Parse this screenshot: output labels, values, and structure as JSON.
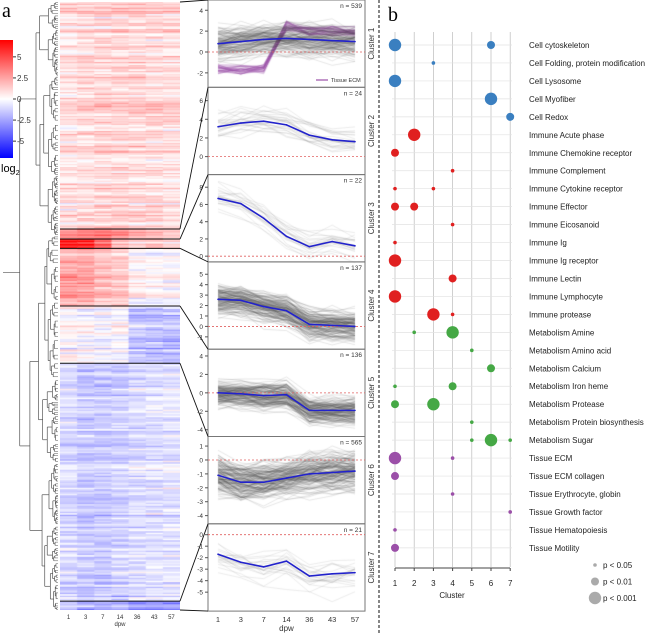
{
  "panel_a_label": "a",
  "panel_b_label": "b",
  "chart_data": [
    {
      "type": "heatmap",
      "title": "Gene expression heatmap with dendrogram",
      "columns": [
        "1",
        "3",
        "7",
        "14",
        "36",
        "43",
        "57"
      ],
      "xlabel": "dpw",
      "colorbar": {
        "label": "log",
        "label_sub": "2",
        "ticks": [
          5,
          2.5,
          0,
          -2.5,
          -5
        ],
        "tick_labels": [
          "5",
          "2.5",
          "0",
          "-2.5",
          "-5"
        ],
        "range": [
          -7,
          7
        ],
        "low": "#0000ff",
        "mid": "#ffffff",
        "high": "#ff0000"
      },
      "clusters_order": [
        1,
        2,
        3,
        4,
        5,
        6,
        7
      ]
    },
    {
      "type": "line",
      "xlabel": "dpw",
      "x": [
        "1",
        "3",
        "7",
        "14",
        "36",
        "43",
        "57"
      ],
      "mean_color": "#2222cc",
      "zero_line_color": "#e06060",
      "panels": [
        {
          "name": "Cluster 1",
          "n_label": "n = 539",
          "n": 539,
          "mean": [
            0.8,
            1.0,
            1.2,
            1.3,
            1.2,
            1.1,
            1.0
          ],
          "ylim": [
            -3,
            4.6
          ],
          "yticks": [
            -2,
            0,
            2,
            4
          ],
          "legend": "Tissue ECM",
          "legend_color": "#9b4fa8"
        },
        {
          "name": "Cluster 2",
          "n_label": "n = 24",
          "n": 24,
          "mean": [
            3.2,
            3.6,
            3.8,
            3.4,
            2.3,
            1.8,
            1.6
          ],
          "ylim": [
            -1.5,
            7
          ],
          "yticks": [
            0,
            2,
            4,
            6
          ]
        },
        {
          "name": "Cluster 3",
          "n_label": "n = 22",
          "n": 22,
          "mean": [
            6.7,
            6.1,
            4.4,
            2.3,
            1.1,
            1.7,
            1.2
          ],
          "ylim": [
            -0.2,
            9
          ],
          "yticks": [
            0,
            2,
            4,
            6,
            8
          ]
        },
        {
          "name": "Cluster 4",
          "n_label": "n = 137",
          "n": 137,
          "mean": [
            2.6,
            2.5,
            1.9,
            1.5,
            0.2,
            0.1,
            0.0
          ],
          "ylim": [
            -1.8,
            5.8
          ],
          "yticks": [
            -1,
            0,
            1,
            2,
            3,
            4,
            5
          ]
        },
        {
          "name": "Cluster 5",
          "n_label": "n = 136",
          "n": 136,
          "mean": [
            0.0,
            -0.1,
            -0.3,
            -0.2,
            -1.9,
            -1.9,
            -1.9
          ],
          "ylim": [
            -4.3,
            4.3
          ],
          "yticks": [
            -4,
            -2,
            0,
            2,
            4
          ]
        },
        {
          "name": "Cluster 6",
          "n_label": "n = 565",
          "n": 565,
          "mean": [
            -1.1,
            -1.6,
            -1.6,
            -1.3,
            -1.0,
            -0.9,
            -0.8
          ],
          "ylim": [
            -4.3,
            1.4
          ],
          "yticks": [
            -4,
            -3,
            -2,
            -1,
            0,
            1
          ]
        },
        {
          "name": "Cluster 7",
          "n_label": "n = 21",
          "n": 21,
          "mean": [
            -1.7,
            -2.4,
            -2.8,
            -2.3,
            -3.6,
            -3.4,
            -3.3
          ],
          "ylim": [
            -6.3,
            0.6
          ],
          "yticks": [
            -5,
            -4,
            -3,
            -2,
            -1,
            0
          ]
        }
      ]
    },
    {
      "type": "scatter",
      "subtype": "bubble",
      "xlabel": "Cluster",
      "x_ticks": [
        "1",
        "2",
        "3",
        "4",
        "5",
        "6",
        "7"
      ],
      "size_legend": [
        {
          "label": "p < 0.05",
          "level": 1
        },
        {
          "label": "p < 0.01",
          "level": 2
        },
        {
          "label": "p < 0.001",
          "level": 3
        }
      ],
      "group_colors": {
        "Cell": "#3a7fc0",
        "Immune": "#e02020",
        "Metabolism": "#45a845",
        "Tissue": "#9b4fa8"
      },
      "categories": [
        {
          "label": "Cell cytoskeleton",
          "group": "Cell",
          "points": [
            [
              1,
              3
            ],
            [
              6,
              2
            ]
          ]
        },
        {
          "label": "Cell Folding, protein modification",
          "group": "Cell",
          "points": [
            [
              3,
              1
            ]
          ]
        },
        {
          "label": "Cell Lysosome",
          "group": "Cell",
          "points": [
            [
              1,
              3
            ]
          ]
        },
        {
          "label": "Cell Myofiber",
          "group": "Cell",
          "points": [
            [
              6,
              3
            ]
          ]
        },
        {
          "label": "Cell Redox",
          "group": "Cell",
          "points": [
            [
              7,
              2
            ]
          ]
        },
        {
          "label": "Immune Acute phase",
          "group": "Immune",
          "points": [
            [
              2,
              3
            ]
          ]
        },
        {
          "label": "Immune Chemokine receptor",
          "group": "Immune",
          "points": [
            [
              1,
              2
            ]
          ]
        },
        {
          "label": "Immune Complement",
          "group": "Immune",
          "points": [
            [
              4,
              1
            ]
          ]
        },
        {
          "label": "Immune Cytokine receptor",
          "group": "Immune",
          "points": [
            [
              1,
              1
            ],
            [
              3,
              1
            ]
          ]
        },
        {
          "label": "Immune Effector",
          "group": "Immune",
          "points": [
            [
              1,
              2
            ],
            [
              2,
              2
            ]
          ]
        },
        {
          "label": "Immune Eicosanoid",
          "group": "Immune",
          "points": [
            [
              4,
              1
            ]
          ]
        },
        {
          "label": "Immune Ig",
          "group": "Immune",
          "points": [
            [
              1,
              1
            ]
          ]
        },
        {
          "label": "Immune Ig receptor",
          "group": "Immune",
          "points": [
            [
              1,
              3
            ]
          ]
        },
        {
          "label": "Immune Lectin",
          "group": "Immune",
          "points": [
            [
              4,
              2
            ]
          ]
        },
        {
          "label": "Immune Lymphocyte",
          "group": "Immune",
          "points": [
            [
              1,
              3
            ]
          ]
        },
        {
          "label": "Immune protease",
          "group": "Immune",
          "points": [
            [
              3,
              3
            ],
            [
              4,
              1
            ]
          ]
        },
        {
          "label": "Metabolism Amine",
          "group": "Metabolism",
          "points": [
            [
              2,
              1
            ],
            [
              4,
              3
            ]
          ]
        },
        {
          "label": "Metabolism Amino acid",
          "group": "Metabolism",
          "points": [
            [
              5,
              1
            ]
          ]
        },
        {
          "label": "Metabolism Calcium",
          "group": "Metabolism",
          "points": [
            [
              6,
              2
            ]
          ]
        },
        {
          "label": "Metabolism Iron heme",
          "group": "Metabolism",
          "points": [
            [
              1,
              1
            ],
            [
              4,
              2
            ]
          ]
        },
        {
          "label": "Metabolism Protease",
          "group": "Metabolism",
          "points": [
            [
              1,
              2
            ],
            [
              3,
              3
            ]
          ]
        },
        {
          "label": "Metabolism Protein biosynthesis",
          "group": "Metabolism",
          "points": [
            [
              5,
              1
            ]
          ]
        },
        {
          "label": "Metabolism Sugar",
          "group": "Metabolism",
          "points": [
            [
              5,
              1
            ],
            [
              6,
              3
            ],
            [
              7,
              1
            ]
          ]
        },
        {
          "label": "Tissue ECM",
          "group": "Tissue",
          "points": [
            [
              1,
              3
            ],
            [
              4,
              1
            ]
          ]
        },
        {
          "label": "Tissue ECM collagen",
          "group": "Tissue",
          "points": [
            [
              1,
              2
            ]
          ]
        },
        {
          "label": "Tissue Erythrocyte, globin",
          "group": "Tissue",
          "points": [
            [
              4,
              1
            ]
          ]
        },
        {
          "label": "Tissue Growth factor",
          "group": "Tissue",
          "points": [
            [
              7,
              1
            ]
          ]
        },
        {
          "label": "Tissue Hematopoiesis",
          "group": "Tissue",
          "points": [
            [
              1,
              1
            ]
          ]
        },
        {
          "label": "Tissue Motility",
          "group": "Tissue",
          "points": [
            [
              1,
              2
            ]
          ]
        }
      ]
    }
  ]
}
